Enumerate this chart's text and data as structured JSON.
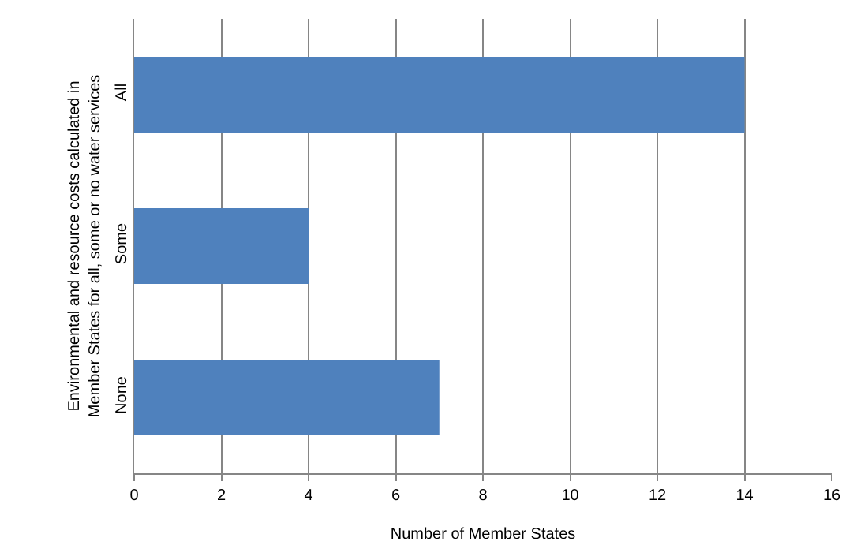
{
  "chart_data": {
    "type": "bar",
    "orientation": "horizontal",
    "categories": [
      "All",
      "Some",
      "None"
    ],
    "values": [
      14,
      4,
      7
    ],
    "color": "#4f81bd",
    "xlim": [
      0,
      16
    ],
    "xticks": [
      0,
      2,
      4,
      6,
      8,
      10,
      12,
      14,
      16
    ],
    "xlabel": "Number of Member States",
    "ylabel": "Environmental and resource costs calculated in Member States for all, some or no water services",
    "grid": "x",
    "legend": false
  }
}
